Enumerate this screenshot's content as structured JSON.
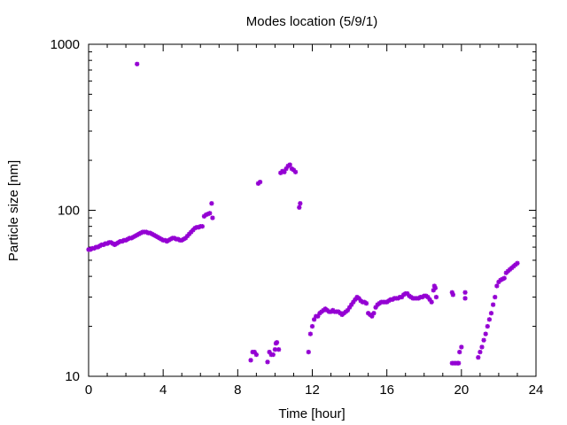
{
  "chart_data": {
    "type": "scatter",
    "title": "Modes location (5/9/1)",
    "xlabel": "Time [hour]",
    "ylabel": "Particle size [nm]",
    "xlim": [
      0,
      24
    ],
    "ylim": [
      10,
      1000
    ],
    "yscale": "log",
    "grid": false,
    "x_ticks": [
      0,
      4,
      8,
      12,
      16,
      20,
      24
    ],
    "x_tick_labels": [
      "0",
      "4",
      "8",
      "12",
      "16",
      "20",
      "24"
    ],
    "y_ticks": [
      10,
      100,
      1000
    ],
    "y_tick_labels": [
      "10",
      "100",
      "1000"
    ],
    "marker_color": "#9400d3",
    "points": [
      [
        0.0,
        58
      ],
      [
        0.1,
        58
      ],
      [
        0.2,
        59
      ],
      [
        0.3,
        59
      ],
      [
        0.4,
        60
      ],
      [
        0.5,
        60
      ],
      [
        0.6,
        61
      ],
      [
        0.7,
        62
      ],
      [
        0.8,
        62
      ],
      [
        0.9,
        63
      ],
      [
        1.0,
        63
      ],
      [
        1.1,
        64
      ],
      [
        1.2,
        64
      ],
      [
        1.3,
        63
      ],
      [
        1.4,
        62
      ],
      [
        1.5,
        63
      ],
      [
        1.6,
        64
      ],
      [
        1.7,
        65
      ],
      [
        1.8,
        65
      ],
      [
        1.9,
        66
      ],
      [
        2.0,
        66
      ],
      [
        2.1,
        67
      ],
      [
        2.2,
        68
      ],
      [
        2.3,
        68
      ],
      [
        2.4,
        69
      ],
      [
        2.5,
        70
      ],
      [
        2.6,
        71
      ],
      [
        2.7,
        72
      ],
      [
        2.8,
        73
      ],
      [
        2.9,
        74
      ],
      [
        3.0,
        74
      ],
      [
        3.1,
        74
      ],
      [
        3.2,
        73
      ],
      [
        3.3,
        73
      ],
      [
        3.4,
        72
      ],
      [
        3.5,
        71
      ],
      [
        3.6,
        70
      ],
      [
        3.7,
        69
      ],
      [
        3.8,
        68
      ],
      [
        3.9,
        67
      ],
      [
        4.0,
        66
      ],
      [
        4.1,
        66
      ],
      [
        4.2,
        65
      ],
      [
        4.3,
        66
      ],
      [
        4.4,
        67
      ],
      [
        4.5,
        68
      ],
      [
        4.6,
        68
      ],
      [
        4.7,
        67
      ],
      [
        4.8,
        67
      ],
      [
        4.9,
        66
      ],
      [
        5.0,
        66
      ],
      [
        5.1,
        67
      ],
      [
        5.2,
        68
      ],
      [
        5.3,
        70
      ],
      [
        5.4,
        72
      ],
      [
        5.5,
        74
      ],
      [
        5.6,
        76
      ],
      [
        5.7,
        78
      ],
      [
        5.8,
        79
      ],
      [
        5.9,
        79
      ],
      [
        6.0,
        80
      ],
      [
        6.1,
        80
      ],
      [
        6.2,
        92
      ],
      [
        6.3,
        94
      ],
      [
        6.4,
        95
      ],
      [
        6.5,
        96
      ],
      [
        6.6,
        110
      ],
      [
        6.65,
        90
      ],
      [
        2.6,
        760
      ],
      [
        8.7,
        12.5
      ],
      [
        8.8,
        14
      ],
      [
        8.9,
        14
      ],
      [
        9.0,
        13.5
      ],
      [
        9.1,
        145
      ],
      [
        9.2,
        148
      ],
      [
        9.6,
        12.2
      ],
      [
        9.7,
        14
      ],
      [
        9.8,
        13.5
      ],
      [
        9.9,
        13.5
      ],
      [
        10.0,
        14.5
      ],
      [
        10.05,
        15.8
      ],
      [
        10.1,
        16
      ],
      [
        10.2,
        14.5
      ],
      [
        10.3,
        168
      ],
      [
        10.4,
        172
      ],
      [
        10.5,
        170
      ],
      [
        10.6,
        178
      ],
      [
        10.7,
        185
      ],
      [
        10.8,
        188
      ],
      [
        10.9,
        178
      ],
      [
        11.0,
        175
      ],
      [
        11.1,
        170
      ],
      [
        11.3,
        104
      ],
      [
        11.35,
        110
      ],
      [
        11.8,
        14
      ],
      [
        11.9,
        18
      ],
      [
        12.0,
        20
      ],
      [
        12.1,
        22
      ],
      [
        12.2,
        23
      ],
      [
        12.3,
        23
      ],
      [
        12.4,
        24
      ],
      [
        12.5,
        24.5
      ],
      [
        12.6,
        25
      ],
      [
        12.7,
        25.5
      ],
      [
        12.8,
        25
      ],
      [
        12.9,
        24.5
      ],
      [
        13.0,
        24.5
      ],
      [
        13.1,
        25
      ],
      [
        13.2,
        24.5
      ],
      [
        13.3,
        24.5
      ],
      [
        13.4,
        24.5
      ],
      [
        13.5,
        24
      ],
      [
        13.6,
        23.5
      ],
      [
        13.7,
        24
      ],
      [
        13.8,
        24.5
      ],
      [
        13.9,
        25
      ],
      [
        14.0,
        26
      ],
      [
        14.1,
        27
      ],
      [
        14.2,
        28
      ],
      [
        14.3,
        29
      ],
      [
        14.4,
        30
      ],
      [
        14.5,
        29.5
      ],
      [
        14.6,
        28.5
      ],
      [
        14.7,
        28
      ],
      [
        14.8,
        28
      ],
      [
        14.9,
        27.5
      ],
      [
        15.0,
        24
      ],
      [
        15.1,
        23.5
      ],
      [
        15.2,
        23
      ],
      [
        15.3,
        24
      ],
      [
        15.4,
        26
      ],
      [
        15.5,
        27
      ],
      [
        15.6,
        27.5
      ],
      [
        15.7,
        28
      ],
      [
        15.8,
        28
      ],
      [
        15.9,
        28
      ],
      [
        16.0,
        28
      ],
      [
        16.1,
        28.5
      ],
      [
        16.2,
        29
      ],
      [
        16.3,
        29
      ],
      [
        16.4,
        29.5
      ],
      [
        16.5,
        29.5
      ],
      [
        16.6,
        29.5
      ],
      [
        16.7,
        30
      ],
      [
        16.8,
        30
      ],
      [
        16.9,
        31
      ],
      [
        17.0,
        31.5
      ],
      [
        17.1,
        31.5
      ],
      [
        17.2,
        30.5
      ],
      [
        17.3,
        30
      ],
      [
        17.4,
        29.5
      ],
      [
        17.5,
        29.5
      ],
      [
        17.6,
        29.5
      ],
      [
        17.7,
        29.5
      ],
      [
        17.8,
        30
      ],
      [
        17.9,
        30
      ],
      [
        18.0,
        30.5
      ],
      [
        18.1,
        30.5
      ],
      [
        18.2,
        30
      ],
      [
        18.3,
        29
      ],
      [
        18.4,
        28
      ],
      [
        18.5,
        33
      ],
      [
        18.55,
        35
      ],
      [
        18.6,
        34
      ],
      [
        18.65,
        30
      ],
      [
        19.5,
        32
      ],
      [
        19.55,
        31
      ],
      [
        19.5,
        12
      ],
      [
        19.6,
        12
      ],
      [
        19.7,
        12
      ],
      [
        19.8,
        12
      ],
      [
        19.85,
        12
      ],
      [
        19.9,
        14
      ],
      [
        20.0,
        15
      ],
      [
        20.2,
        32
      ],
      [
        20.2,
        29.5
      ],
      [
        20.9,
        13
      ],
      [
        21.0,
        14
      ],
      [
        21.1,
        15
      ],
      [
        21.2,
        16.5
      ],
      [
        21.3,
        18
      ],
      [
        21.4,
        20
      ],
      [
        21.5,
        22
      ],
      [
        21.6,
        24
      ],
      [
        21.7,
        27
      ],
      [
        21.8,
        30
      ],
      [
        21.9,
        35
      ],
      [
        22.0,
        37
      ],
      [
        22.1,
        38
      ],
      [
        22.2,
        38.5
      ],
      [
        22.3,
        39
      ],
      [
        22.4,
        42
      ],
      [
        22.5,
        43
      ],
      [
        22.6,
        44
      ],
      [
        22.7,
        45
      ],
      [
        22.8,
        46
      ],
      [
        22.9,
        47
      ],
      [
        23.0,
        48
      ]
    ]
  }
}
